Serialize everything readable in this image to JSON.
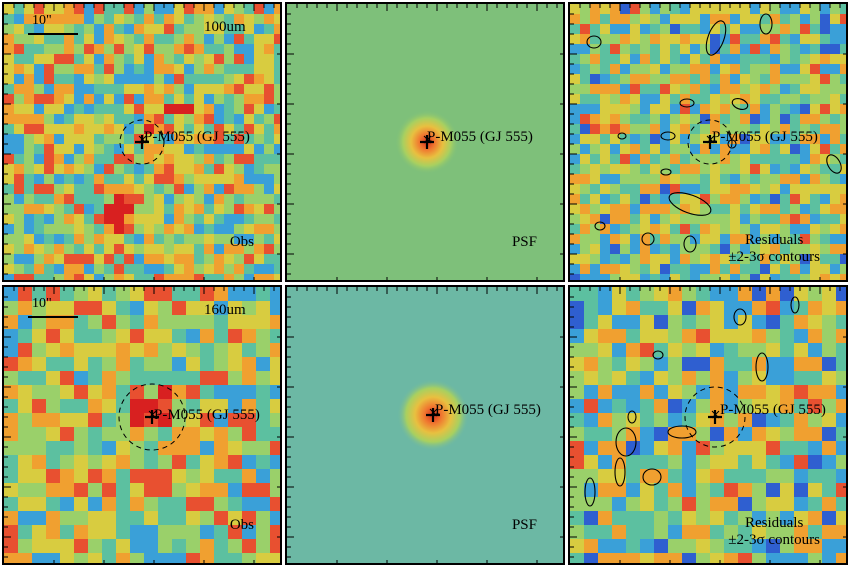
{
  "source_label": "P-M055 (GJ 555)",
  "scale_bar_label": "10\"",
  "rows": [
    {
      "band": "100um",
      "panels": [
        "Obs",
        "PSF",
        "Residuals"
      ],
      "contour_label": "±2-3σ contours"
    },
    {
      "band": "160um",
      "panels": [
        "Obs",
        "PSF",
        "Residuals"
      ],
      "contour_label": "±2-3σ contours"
    }
  ],
  "colors": {
    "colormap": [
      "#3a1f8f",
      "#2f5fd0",
      "#3aa0d8",
      "#5cc0a0",
      "#9ad06a",
      "#d8cc40",
      "#f0a030",
      "#e85030",
      "#d82020"
    ],
    "psf_background_top": "#7ec07a",
    "psf_background_bottom": "#6cb8a4"
  }
}
